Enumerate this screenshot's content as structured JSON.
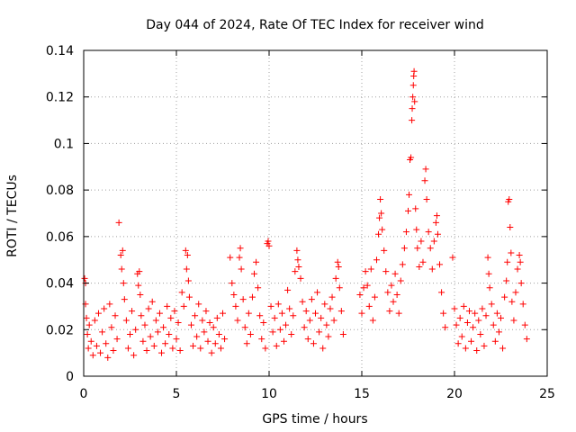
{
  "chart_data": {
    "type": "scatter",
    "title": "Day 044 of 2024, Rate Of TEC Index for receiver wind",
    "xlabel": "GPS time / hours",
    "ylabel": "ROTI / TECUs",
    "xlim": [
      0,
      25
    ],
    "ylim": [
      0,
      0.14
    ],
    "xticks": [
      0,
      5,
      10,
      15,
      20,
      25
    ],
    "xtick_labels": [
      "0",
      "5",
      "10",
      "15",
      "20",
      "25"
    ],
    "yticks": [
      0,
      0.02,
      0.04,
      0.06,
      0.08,
      0.1,
      0.12,
      0.14
    ],
    "ytick_labels": [
      "0",
      "0.02",
      "0.04",
      "0.06",
      "0.08",
      "0.1",
      "0.12",
      "0.14"
    ],
    "grid": true,
    "marker": "+",
    "series": [
      {
        "name": "ROTI",
        "color": "#ff0000",
        "points": [
          [
            0.05,
            0.042
          ],
          [
            0.1,
            0.04
          ],
          [
            0.1,
            0.031
          ],
          [
            0.15,
            0.025
          ],
          [
            0.2,
            0.018
          ],
          [
            0.25,
            0.012
          ],
          [
            0.3,
            0.022
          ],
          [
            0.4,
            0.015
          ],
          [
            0.5,
            0.009
          ],
          [
            0.6,
            0.024
          ],
          [
            0.7,
            0.013
          ],
          [
            0.8,
            0.027
          ],
          [
            0.9,
            0.01
          ],
          [
            1.0,
            0.019
          ],
          [
            1.1,
            0.029
          ],
          [
            1.2,
            0.014
          ],
          [
            1.3,
            0.008
          ],
          [
            1.4,
            0.031
          ],
          [
            1.5,
            0.021
          ],
          [
            1.6,
            0.011
          ],
          [
            1.7,
            0.026
          ],
          [
            1.8,
            0.016
          ],
          [
            1.9,
            0.066
          ],
          [
            2.0,
            0.052
          ],
          [
            2.05,
            0.046
          ],
          [
            2.1,
            0.054
          ],
          [
            2.15,
            0.04
          ],
          [
            2.2,
            0.033
          ],
          [
            2.3,
            0.024
          ],
          [
            2.4,
            0.012
          ],
          [
            2.5,
            0.018
          ],
          [
            2.6,
            0.028
          ],
          [
            2.7,
            0.009
          ],
          [
            2.8,
            0.02
          ],
          [
            2.9,
            0.044
          ],
          [
            2.95,
            0.039
          ],
          [
            3.0,
            0.045
          ],
          [
            3.05,
            0.035
          ],
          [
            3.1,
            0.026
          ],
          [
            3.2,
            0.015
          ],
          [
            3.3,
            0.022
          ],
          [
            3.4,
            0.011
          ],
          [
            3.5,
            0.029
          ],
          [
            3.6,
            0.017
          ],
          [
            3.7,
            0.032
          ],
          [
            3.8,
            0.013
          ],
          [
            3.9,
            0.024
          ],
          [
            4.0,
            0.019
          ],
          [
            4.1,
            0.027
          ],
          [
            4.2,
            0.01
          ],
          [
            4.3,
            0.021
          ],
          [
            4.4,
            0.014
          ],
          [
            4.5,
            0.03
          ],
          [
            4.6,
            0.018
          ],
          [
            4.7,
            0.025
          ],
          [
            4.8,
            0.012
          ],
          [
            4.9,
            0.028
          ],
          [
            5.0,
            0.016
          ],
          [
            5.1,
            0.023
          ],
          [
            5.2,
            0.011
          ],
          [
            5.3,
            0.036
          ],
          [
            5.4,
            0.03
          ],
          [
            5.5,
            0.054
          ],
          [
            5.55,
            0.046
          ],
          [
            5.6,
            0.052
          ],
          [
            5.65,
            0.041
          ],
          [
            5.7,
            0.034
          ],
          [
            5.8,
            0.022
          ],
          [
            5.9,
            0.013
          ],
          [
            6.0,
            0.026
          ],
          [
            6.1,
            0.017
          ],
          [
            6.2,
            0.031
          ],
          [
            6.3,
            0.012
          ],
          [
            6.4,
            0.024
          ],
          [
            6.5,
            0.019
          ],
          [
            6.6,
            0.028
          ],
          [
            6.7,
            0.015
          ],
          [
            6.8,
            0.023
          ],
          [
            6.9,
            0.01
          ],
          [
            7.0,
            0.021
          ],
          [
            7.1,
            0.014
          ],
          [
            7.2,
            0.025
          ],
          [
            7.3,
            0.018
          ],
          [
            7.4,
            0.012
          ],
          [
            7.5,
            0.027
          ],
          [
            7.6,
            0.016
          ],
          [
            7.9,
            0.051
          ],
          [
            8.0,
            0.04
          ],
          [
            8.1,
            0.035
          ],
          [
            8.2,
            0.03
          ],
          [
            8.3,
            0.024
          ],
          [
            8.4,
            0.051
          ],
          [
            8.45,
            0.055
          ],
          [
            8.5,
            0.046
          ],
          [
            8.6,
            0.033
          ],
          [
            8.7,
            0.021
          ],
          [
            8.8,
            0.014
          ],
          [
            8.9,
            0.027
          ],
          [
            9.0,
            0.018
          ],
          [
            9.1,
            0.034
          ],
          [
            9.2,
            0.044
          ],
          [
            9.3,
            0.049
          ],
          [
            9.4,
            0.038
          ],
          [
            9.5,
            0.026
          ],
          [
            9.6,
            0.016
          ],
          [
            9.7,
            0.023
          ],
          [
            9.8,
            0.012
          ],
          [
            9.9,
            0.057
          ],
          [
            9.95,
            0.058
          ],
          [
            10.0,
            0.056
          ],
          [
            10.1,
            0.03
          ],
          [
            10.2,
            0.019
          ],
          [
            10.3,
            0.025
          ],
          [
            10.4,
            0.013
          ],
          [
            10.5,
            0.031
          ],
          [
            10.6,
            0.02
          ],
          [
            10.7,
            0.027
          ],
          [
            10.8,
            0.015
          ],
          [
            10.9,
            0.022
          ],
          [
            11.0,
            0.037
          ],
          [
            11.1,
            0.029
          ],
          [
            11.2,
            0.018
          ],
          [
            11.3,
            0.026
          ],
          [
            11.4,
            0.045
          ],
          [
            11.5,
            0.054
          ],
          [
            11.55,
            0.05
          ],
          [
            11.6,
            0.047
          ],
          [
            11.7,
            0.042
          ],
          [
            11.8,
            0.032
          ],
          [
            11.9,
            0.021
          ],
          [
            12.0,
            0.028
          ],
          [
            12.1,
            0.016
          ],
          [
            12.2,
            0.024
          ],
          [
            12.3,
            0.033
          ],
          [
            12.4,
            0.014
          ],
          [
            12.5,
            0.027
          ],
          [
            12.6,
            0.036
          ],
          [
            12.7,
            0.019
          ],
          [
            12.8,
            0.025
          ],
          [
            12.9,
            0.012
          ],
          [
            13.0,
            0.031
          ],
          [
            13.1,
            0.022
          ],
          [
            13.2,
            0.017
          ],
          [
            13.3,
            0.029
          ],
          [
            13.4,
            0.034
          ],
          [
            13.5,
            0.024
          ],
          [
            13.6,
            0.042
          ],
          [
            13.7,
            0.049
          ],
          [
            13.75,
            0.047
          ],
          [
            13.8,
            0.038
          ],
          [
            13.9,
            0.028
          ],
          [
            14.0,
            0.018
          ],
          [
            14.9,
            0.035
          ],
          [
            15.0,
            0.027
          ],
          [
            15.1,
            0.038
          ],
          [
            15.2,
            0.045
          ],
          [
            15.3,
            0.039
          ],
          [
            15.4,
            0.03
          ],
          [
            15.5,
            0.046
          ],
          [
            15.6,
            0.024
          ],
          [
            15.7,
            0.034
          ],
          [
            15.8,
            0.05
          ],
          [
            15.9,
            0.061
          ],
          [
            15.95,
            0.068
          ],
          [
            16.0,
            0.076
          ],
          [
            16.05,
            0.07
          ],
          [
            16.1,
            0.063
          ],
          [
            16.2,
            0.054
          ],
          [
            16.3,
            0.045
          ],
          [
            16.4,
            0.036
          ],
          [
            16.5,
            0.028
          ],
          [
            16.6,
            0.039
          ],
          [
            16.7,
            0.032
          ],
          [
            16.8,
            0.044
          ],
          [
            16.9,
            0.035
          ],
          [
            17.0,
            0.027
          ],
          [
            17.1,
            0.041
          ],
          [
            17.2,
            0.048
          ],
          [
            17.3,
            0.055
          ],
          [
            17.4,
            0.062
          ],
          [
            17.5,
            0.071
          ],
          [
            17.55,
            0.078
          ],
          [
            17.6,
            0.093
          ],
          [
            17.65,
            0.094
          ],
          [
            17.7,
            0.11
          ],
          [
            17.72,
            0.115
          ],
          [
            17.75,
            0.12
          ],
          [
            17.78,
            0.125
          ],
          [
            17.8,
            0.129
          ],
          [
            17.82,
            0.131
          ],
          [
            17.85,
            0.118
          ],
          [
            17.9,
            0.072
          ],
          [
            17.95,
            0.063
          ],
          [
            18.0,
            0.055
          ],
          [
            18.1,
            0.047
          ],
          [
            18.2,
            0.058
          ],
          [
            18.3,
            0.049
          ],
          [
            18.4,
            0.084
          ],
          [
            18.45,
            0.089
          ],
          [
            18.5,
            0.076
          ],
          [
            18.6,
            0.062
          ],
          [
            18.7,
            0.055
          ],
          [
            18.8,
            0.046
          ],
          [
            18.9,
            0.058
          ],
          [
            19.0,
            0.066
          ],
          [
            19.05,
            0.069
          ],
          [
            19.1,
            0.061
          ],
          [
            19.2,
            0.048
          ],
          [
            19.3,
            0.036
          ],
          [
            19.4,
            0.027
          ],
          [
            19.5,
            0.021
          ],
          [
            19.9,
            0.051
          ],
          [
            20.0,
            0.029
          ],
          [
            20.1,
            0.022
          ],
          [
            20.2,
            0.014
          ],
          [
            20.3,
            0.025
          ],
          [
            20.4,
            0.017
          ],
          [
            20.5,
            0.03
          ],
          [
            20.6,
            0.012
          ],
          [
            20.7,
            0.023
          ],
          [
            20.8,
            0.028
          ],
          [
            20.9,
            0.015
          ],
          [
            21.0,
            0.021
          ],
          [
            21.1,
            0.027
          ],
          [
            21.2,
            0.011
          ],
          [
            21.3,
            0.024
          ],
          [
            21.4,
            0.018
          ],
          [
            21.5,
            0.029
          ],
          [
            21.6,
            0.013
          ],
          [
            21.7,
            0.026
          ],
          [
            21.8,
            0.051
          ],
          [
            21.85,
            0.044
          ],
          [
            21.9,
            0.038
          ],
          [
            22.0,
            0.031
          ],
          [
            22.1,
            0.022
          ],
          [
            22.2,
            0.015
          ],
          [
            22.3,
            0.027
          ],
          [
            22.4,
            0.019
          ],
          [
            22.5,
            0.025
          ],
          [
            22.6,
            0.012
          ],
          [
            22.7,
            0.034
          ],
          [
            22.8,
            0.041
          ],
          [
            22.85,
            0.049
          ],
          [
            22.9,
            0.075
          ],
          [
            22.95,
            0.076
          ],
          [
            23.0,
            0.064
          ],
          [
            23.05,
            0.053
          ],
          [
            23.1,
            0.032
          ],
          [
            23.2,
            0.024
          ],
          [
            23.3,
            0.036
          ],
          [
            23.4,
            0.046
          ],
          [
            23.5,
            0.052
          ],
          [
            23.55,
            0.049
          ],
          [
            23.6,
            0.04
          ],
          [
            23.7,
            0.031
          ],
          [
            23.8,
            0.022
          ],
          [
            23.9,
            0.016
          ]
        ]
      }
    ]
  }
}
